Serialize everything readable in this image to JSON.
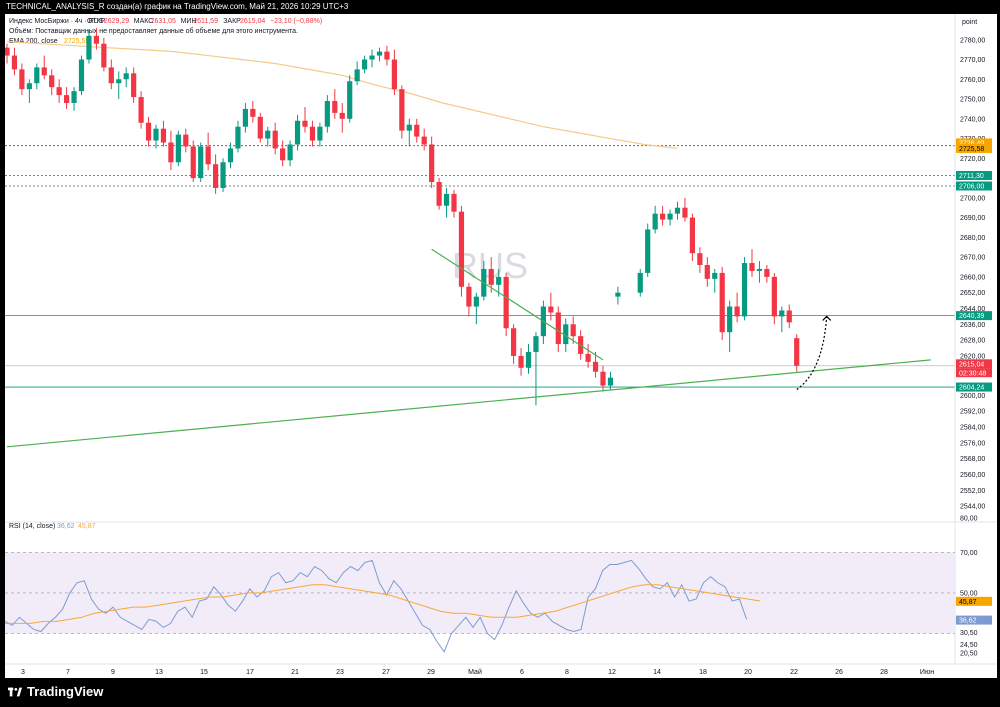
{
  "top_caption": "TECHNICAL_ANALYSIS_R создан(а) график на TradingView.com, Май 21, 2026 10:29 UTC+3",
  "legend": {
    "instrument": "Индекс МосБиржи · 4ч · RUS",
    "ohlc": [
      {
        "label": "ОТКР",
        "value": "2629,29"
      },
      {
        "label": "МАКС",
        "value": "2631,05"
      },
      {
        "label": "МИН",
        "value": "2611,59"
      },
      {
        "label": "ЗАКР",
        "value": "2615,04"
      }
    ],
    "change": "−23,10 (−0,88%)",
    "volume_note": "Объём: Поставщик данных не предоставляет данные об объеме для этого инструмента.",
    "ema_label": "EMA 200, close",
    "ema_value": "2725,58"
  },
  "watermark": "RUS",
  "price_axis": {
    "unit": "point",
    "ticks": [
      "2780,00",
      "2770,00",
      "2760,00",
      "2750,00",
      "2740,00",
      "2730,00",
      "2720,00",
      "2700,00",
      "2690,00",
      "2680,00",
      "2670,00",
      "2660,00",
      "2652,00",
      "2644,00",
      "2636,00",
      "2628,00",
      "2620,00",
      "2600,00",
      "2592,00",
      "2584,00",
      "2576,00",
      "2568,00",
      "2560,00",
      "2552,00",
      "2544,00",
      "80,00"
    ]
  },
  "price_badges": [
    {
      "text": "2726,40",
      "bg": "#f7a600",
      "fg": "#ffffff"
    },
    {
      "text": "2725,58",
      "bg": "#f7a600",
      "fg": "#000000"
    },
    {
      "text": "2711,30",
      "bg": "#089981",
      "fg": "#ffffff"
    },
    {
      "text": "2706,00",
      "bg": "#089981",
      "fg": "#ffffff"
    },
    {
      "text": "2640,39",
      "bg": "#089981",
      "fg": "#ffffff"
    },
    {
      "text": "2615,04",
      "bg": "#f23645",
      "fg": "#ffffff"
    },
    {
      "text": "02:30:48",
      "bg": "#f23645",
      "fg": "#ffffff"
    },
    {
      "text": "2604,24",
      "bg": "#089981",
      "fg": "#ffffff"
    }
  ],
  "rsi": {
    "label": "RSI (14, close)",
    "value": "36,62",
    "ma_value": "45,87",
    "ticks": [
      "70,00",
      "50,00",
      "30,50",
      "24,50",
      "20,50"
    ],
    "badge_ma": "45,87",
    "badge_rsi": "36,62",
    "line_color": "#7e9bd1",
    "ma_color": "#f7a83a"
  },
  "time_axis": {
    "labels": [
      "3",
      "7",
      "9",
      "13",
      "15",
      "17",
      "21",
      "23",
      "27",
      "29",
      "Май",
      "6",
      "8",
      "12",
      "14",
      "18",
      "20",
      "22",
      "26",
      "28",
      "Июн"
    ]
  },
  "footer": {
    "brand": "TradingView"
  },
  "colors": {
    "up": "#089981",
    "down": "#f23645",
    "ema": "#f7c98a",
    "trend": "#4caf50"
  },
  "chart_data": {
    "type": "candlestick",
    "ohlc": [
      [
        2776,
        2778,
        2768,
        2772
      ],
      [
        2772,
        2776,
        2762,
        2765
      ],
      [
        2765,
        2768,
        2752,
        2755
      ],
      [
        2755,
        2760,
        2748,
        2758
      ],
      [
        2758,
        2768,
        2755,
        2766
      ],
      [
        2766,
        2772,
        2760,
        2762
      ],
      [
        2762,
        2765,
        2752,
        2756
      ],
      [
        2756,
        2760,
        2748,
        2752
      ],
      [
        2752,
        2756,
        2745,
        2748
      ],
      [
        2748,
        2756,
        2744,
        2754
      ],
      [
        2754,
        2772,
        2752,
        2770
      ],
      [
        2770,
        2785,
        2768,
        2782
      ],
      [
        2782,
        2786,
        2775,
        2778
      ],
      [
        2778,
        2781,
        2764,
        2766
      ],
      [
        2766,
        2770,
        2755,
        2758
      ],
      [
        2758,
        2764,
        2750,
        2760
      ],
      [
        2760,
        2766,
        2756,
        2763
      ],
      [
        2763,
        2766,
        2748,
        2751
      ],
      [
        2751,
        2754,
        2735,
        2738
      ],
      [
        2738,
        2741,
        2726,
        2729
      ],
      [
        2729,
        2737,
        2725,
        2735
      ],
      [
        2735,
        2739,
        2726,
        2728
      ],
      [
        2728,
        2734,
        2714,
        2718
      ],
      [
        2718,
        2734,
        2716,
        2732
      ],
      [
        2732,
        2735,
        2723,
        2726
      ],
      [
        2726,
        2729,
        2708,
        2710
      ],
      [
        2710,
        2728,
        2708,
        2726
      ],
      [
        2726,
        2733,
        2714,
        2717
      ],
      [
        2717,
        2722,
        2702,
        2705
      ],
      [
        2705,
        2720,
        2703,
        2718
      ],
      [
        2718,
        2728,
        2715,
        2725
      ],
      [
        2725,
        2739,
        2723,
        2736
      ],
      [
        2736,
        2748,
        2733,
        2745
      ],
      [
        2745,
        2749,
        2738,
        2741
      ],
      [
        2741,
        2743,
        2728,
        2730
      ],
      [
        2730,
        2736,
        2726,
        2734
      ],
      [
        2734,
        2738,
        2722,
        2725
      ],
      [
        2725,
        2729,
        2716,
        2719
      ],
      [
        2719,
        2729,
        2716,
        2727
      ],
      [
        2727,
        2742,
        2724,
        2739
      ],
      [
        2739,
        2746,
        2733,
        2736
      ],
      [
        2736,
        2739,
        2726,
        2729
      ],
      [
        2729,
        2738,
        2726,
        2736
      ],
      [
        2736,
        2752,
        2733,
        2749
      ],
      [
        2749,
        2755,
        2740,
        2743
      ],
      [
        2743,
        2748,
        2733,
        2740
      ],
      [
        2740,
        2762,
        2738,
        2759
      ],
      [
        2759,
        2769,
        2757,
        2765
      ],
      [
        2765,
        2772,
        2763,
        2770
      ],
      [
        2770,
        2775,
        2766,
        2772
      ],
      [
        2772,
        2776,
        2769,
        2774
      ],
      [
        2774,
        2777,
        2767,
        2770
      ],
      [
        2770,
        2775,
        2752,
        2755
      ],
      [
        2755,
        2757,
        2730,
        2734
      ],
      [
        2734,
        2740,
        2726,
        2737
      ],
      [
        2737,
        2740,
        2728,
        2731
      ],
      [
        2731,
        2735,
        2724,
        2727
      ],
      [
        2727,
        2731,
        2705,
        2708
      ],
      [
        2708,
        2710,
        2694,
        2696
      ],
      [
        2696,
        2705,
        2690,
        2702
      ],
      [
        2702,
        2704,
        2690,
        2693
      ],
      [
        2693,
        2696,
        2650,
        2655
      ],
      [
        2655,
        2657,
        2640,
        2645
      ],
      [
        2645,
        2652,
        2636,
        2650
      ],
      [
        2650,
        2668,
        2648,
        2664
      ],
      [
        2664,
        2670,
        2652,
        2656
      ],
      [
        2656,
        2664,
        2650,
        2660
      ],
      [
        2660,
        2662,
        2630,
        2634
      ],
      [
        2634,
        2636,
        2616,
        2620
      ],
      [
        2620,
        2624,
        2610,
        2614
      ],
      [
        2614,
        2626,
        2611,
        2622
      ],
      [
        2622,
        2632,
        2595,
        2630
      ],
      [
        2630,
        2648,
        2626,
        2645
      ],
      [
        2645,
        2652,
        2638,
        2642
      ],
      [
        2642,
        2645,
        2622,
        2626
      ],
      [
        2626,
        2639,
        2622,
        2636
      ],
      [
        2636,
        2640,
        2626,
        2630
      ],
      [
        2630,
        2633,
        2618,
        2621
      ],
      [
        2621,
        2626,
        2614,
        2617
      ],
      [
        2617,
        2622,
        2609,
        2612
      ],
      [
        2612,
        2615,
        2602,
        2605
      ],
      [
        2605,
        2612,
        2603,
        2609
      ],
      [
        2650,
        2655,
        2646,
        2652
      ],
      [
        2652,
        2664,
        2650,
        2662
      ],
      [
        2662,
        2687,
        2660,
        2684
      ],
      [
        2684,
        2696,
        2682,
        2692
      ],
      [
        2692,
        2696,
        2686,
        2689
      ],
      [
        2689,
        2694,
        2686,
        2692
      ],
      [
        2692,
        2698,
        2689,
        2695
      ],
      [
        2695,
        2700,
        2688,
        2690
      ],
      [
        2690,
        2692,
        2668,
        2672
      ],
      [
        2672,
        2675,
        2662,
        2666
      ],
      [
        2666,
        2670,
        2655,
        2659
      ],
      [
        2659,
        2664,
        2652,
        2662
      ],
      [
        2662,
        2665,
        2628,
        2632
      ],
      [
        2632,
        2648,
        2622,
        2645
      ],
      [
        2645,
        2652,
        2637,
        2640
      ],
      [
        2640,
        2670,
        2638,
        2667
      ],
      [
        2667,
        2674,
        2660,
        2663
      ],
      [
        2663,
        2668,
        2657,
        2664
      ],
      [
        2664,
        2666,
        2657,
        2660
      ],
      [
        2660,
        2662,
        2636,
        2640
      ],
      [
        2640,
        2645,
        2632,
        2643
      ],
      [
        2643,
        2646,
        2634,
        2637
      ],
      [
        2629,
        2631,
        2612,
        2615
      ]
    ],
    "x_index_start": 0,
    "ema200": {
      "name": "EMA 200, close",
      "values": [
        2779,
        2778,
        2777,
        2776,
        2775,
        2774,
        2772,
        2770,
        2768,
        2765,
        2762,
        2757,
        2753,
        2748,
        2744,
        2740,
        2736,
        2733,
        2730,
        2727,
        2725
      ]
    },
    "horizontal_levels": [
      2726.4,
      2711.3,
      2706.0,
      2640.39,
      2615.04,
      2604.24
    ],
    "trendlines": [
      {
        "from": [
          0,
          2574
        ],
        "to": [
          124,
          2618
        ]
      },
      {
        "from": [
          57,
          2674
        ],
        "to": [
          80,
          2618
        ]
      }
    ],
    "ylim": [
      2540,
      2790
    ],
    "rsi_values": [
      36,
      34,
      38,
      35,
      32,
      31,
      35,
      38,
      42,
      50,
      55,
      56,
      47,
      42,
      40,
      43,
      38,
      36,
      34,
      32,
      37,
      36,
      33,
      35,
      41,
      43,
      38,
      46,
      47,
      53,
      49,
      44,
      41,
      46,
      52,
      48,
      51,
      58,
      60,
      55,
      56,
      60,
      58,
      63,
      61,
      57,
      55,
      60,
      63,
      61,
      65,
      66,
      55,
      49,
      56,
      52,
      46,
      40,
      34,
      32,
      26,
      21,
      30,
      34,
      38,
      33,
      38,
      30,
      27,
      34,
      43,
      51,
      45,
      40,
      38,
      40,
      36,
      34,
      32,
      31,
      32,
      48,
      52,
      61,
      64,
      64,
      65,
      66,
      62,
      57,
      53,
      52,
      55,
      48,
      54,
      46,
      47,
      55,
      58,
      55,
      53,
      46,
      47,
      37
    ],
    "rsi_ma_values": [
      35,
      35,
      35,
      36,
      36,
      37,
      38,
      40,
      41,
      42,
      43,
      43,
      44,
      45,
      46,
      47,
      48,
      48,
      49,
      50,
      50,
      51,
      52,
      53,
      54,
      54,
      53,
      52,
      51,
      50,
      49,
      47,
      45,
      43,
      41,
      40,
      40,
      39,
      38,
      38,
      38,
      39,
      40,
      41,
      43,
      45,
      47,
      49,
      51,
      53,
      54,
      54,
      53,
      52,
      51,
      50,
      49,
      48,
      47,
      46
    ],
    "rsi_ylim": [
      15,
      80
    ]
  }
}
